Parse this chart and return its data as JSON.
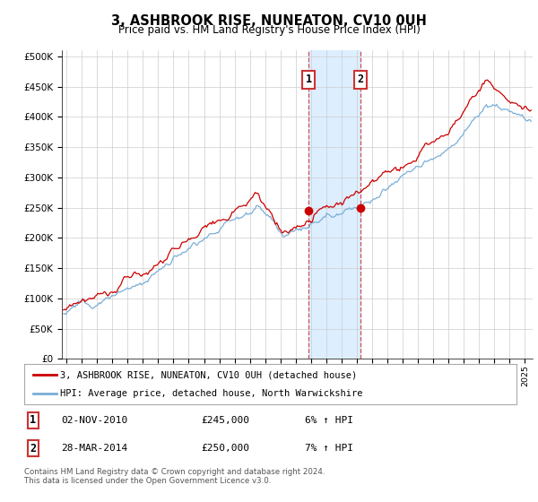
{
  "title": "3, ASHBROOK RISE, NUNEATON, CV10 0UH",
  "subtitle": "Price paid vs. HM Land Registry's House Price Index (HPI)",
  "yticks": [
    0,
    50000,
    100000,
    150000,
    200000,
    250000,
    300000,
    350000,
    400000,
    450000,
    500000
  ],
  "xlim_start": 1994.7,
  "xlim_end": 2025.5,
  "ylim": [
    0,
    510000
  ],
  "legend_line1": "3, ASHBROOK RISE, NUNEATON, CV10 0UH (detached house)",
  "legend_line2": "HPI: Average price, detached house, North Warwickshire",
  "marker1_date": 2010.84,
  "marker2_date": 2014.24,
  "marker1_price": 245000,
  "marker2_price": 250000,
  "table_row1": [
    "1",
    "02-NOV-2010",
    "£245,000",
    "6% ↑ HPI"
  ],
  "table_row2": [
    "2",
    "28-MAR-2014",
    "£250,000",
    "7% ↑ HPI"
  ],
  "footnote": "Contains HM Land Registry data © Crown copyright and database right 2024.\nThis data is licensed under the Open Government Licence v3.0.",
  "line_color_red": "#cc0000",
  "line_color_blue": "#7aaed6",
  "shade_color": "#ddeeff",
  "marker_box_color": "#cc3333",
  "background_color": "#ffffff",
  "grid_color": "#cccccc"
}
